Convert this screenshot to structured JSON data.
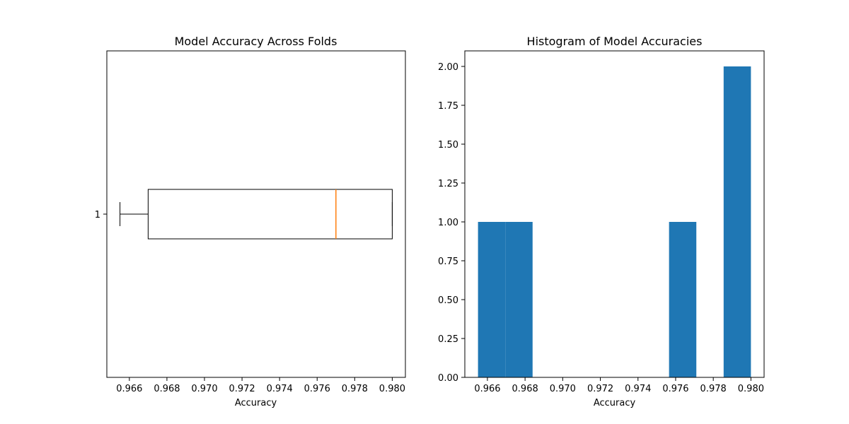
{
  "chart_data": [
    {
      "type": "box",
      "title": "Model Accuracy Across Folds",
      "xlabel": "Accuracy",
      "ylabel": "",
      "orientation": "horizontal",
      "xlim": [
        0.9648,
        0.9807
      ],
      "xticks": [
        "0.966",
        "0.968",
        "0.970",
        "0.972",
        "0.974",
        "0.976",
        "0.978",
        "0.980"
      ],
      "yticks": [
        "1"
      ],
      "box": {
        "whisker_low": 0.9655,
        "q1": 0.967,
        "median": 0.977,
        "q3": 0.98,
        "whisker_high": 0.98
      },
      "colors": {
        "box": "#000000",
        "median": "#ff7f0e"
      }
    },
    {
      "type": "histogram",
      "title": "Histogram of Model Accuracies",
      "xlabel": "Accuracy",
      "ylabel": "",
      "xlim": [
        0.9648,
        0.9807
      ],
      "ylim": [
        0,
        2.1
      ],
      "xticks": [
        "0.966",
        "0.968",
        "0.970",
        "0.972",
        "0.974",
        "0.976",
        "0.978",
        "0.980"
      ],
      "yticks": [
        "0.00",
        "0.25",
        "0.50",
        "0.75",
        "1.00",
        "1.25",
        "1.50",
        "1.75",
        "2.00"
      ],
      "bins": [
        {
          "x0": 0.9655,
          "x1": 0.96695,
          "count": 1
        },
        {
          "x0": 0.96695,
          "x1": 0.9684,
          "count": 1
        },
        {
          "x0": 0.97565,
          "x1": 0.9771,
          "count": 1
        },
        {
          "x0": 0.97855,
          "x1": 0.98,
          "count": 2
        }
      ],
      "colors": {
        "bar": "#1f77b4"
      }
    }
  ]
}
